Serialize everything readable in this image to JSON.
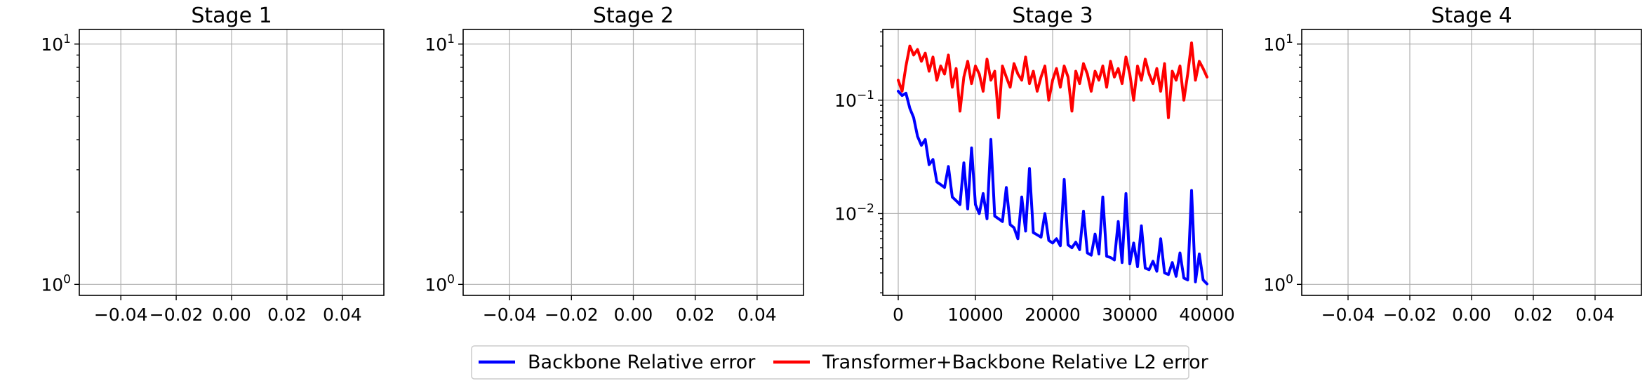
{
  "chart_data": [
    {
      "type": "line",
      "title": "Stage 1",
      "xlabel": "",
      "ylabel": "",
      "yscale": "log",
      "xlim": [
        -0.055,
        0.055
      ],
      "ylim": [
        0.9,
        11.5
      ],
      "xticks": [
        -0.04,
        -0.02,
        0.0,
        0.02,
        0.04
      ],
      "xticklabels": [
        "−0.04",
        "−0.02",
        "0.00",
        "0.02",
        "0.04"
      ],
      "yticks": [
        1,
        10
      ],
      "yticklabels": [
        {
          "base": "10",
          "exp": "0"
        },
        {
          "base": "10",
          "exp": "1"
        }
      ],
      "grid": true,
      "series": []
    },
    {
      "type": "line",
      "title": "Stage 2",
      "xlabel": "",
      "ylabel": "",
      "yscale": "log",
      "xlim": [
        -0.055,
        0.055
      ],
      "ylim": [
        0.9,
        11.5
      ],
      "xticks": [
        -0.04,
        -0.02,
        0.0,
        0.02,
        0.04
      ],
      "xticklabels": [
        "−0.04",
        "−0.02",
        "0.00",
        "0.02",
        "0.04"
      ],
      "yticks": [
        1,
        10
      ],
      "yticklabels": [
        {
          "base": "10",
          "exp": "0"
        },
        {
          "base": "10",
          "exp": "1"
        }
      ],
      "grid": true,
      "series": []
    },
    {
      "type": "line",
      "title": "Stage 3",
      "xlabel": "",
      "ylabel": "",
      "yscale": "log",
      "xlim": [
        -2000,
        42000
      ],
      "ylim": [
        0.0019,
        0.42
      ],
      "xticks": [
        0,
        10000,
        20000,
        30000,
        40000
      ],
      "xticklabels": [
        "0",
        "10000",
        "20000",
        "30000",
        "40000"
      ],
      "yticks": [
        0.01,
        0.1
      ],
      "yticklabels": [
        {
          "base": "10",
          "exp": "−2"
        },
        {
          "base": "10",
          "exp": "−1"
        }
      ],
      "grid": true,
      "series": [
        {
          "name": "Backbone Relative error",
          "color": "#0000ff",
          "x": [
            0,
            500,
            1000,
            1500,
            2000,
            2500,
            3000,
            3500,
            4000,
            4500,
            5000,
            5500,
            6000,
            6500,
            7000,
            7500,
            8000,
            8500,
            9000,
            9500,
            10000,
            10500,
            11000,
            11500,
            12000,
            12500,
            13000,
            13500,
            14000,
            14500,
            15000,
            15500,
            16000,
            16500,
            17000,
            17500,
            18000,
            18500,
            19000,
            19500,
            20000,
            20500,
            21000,
            21500,
            22000,
            22500,
            23000,
            23500,
            24000,
            24500,
            25000,
            25500,
            26000,
            26500,
            27000,
            27500,
            28000,
            28500,
            29000,
            29500,
            30000,
            30500,
            31000,
            31500,
            32000,
            32500,
            33000,
            33500,
            34000,
            34500,
            35000,
            35500,
            36000,
            36500,
            37000,
            37500,
            38000,
            38500,
            39000,
            39500,
            40000
          ],
          "values": [
            0.12,
            0.11,
            0.115,
            0.085,
            0.07,
            0.048,
            0.04,
            0.045,
            0.027,
            0.03,
            0.019,
            0.018,
            0.017,
            0.026,
            0.014,
            0.013,
            0.012,
            0.028,
            0.011,
            0.038,
            0.012,
            0.01,
            0.015,
            0.009,
            0.045,
            0.0095,
            0.009,
            0.0085,
            0.017,
            0.008,
            0.0075,
            0.006,
            0.014,
            0.007,
            0.025,
            0.0068,
            0.0065,
            0.0062,
            0.01,
            0.0058,
            0.0055,
            0.006,
            0.0052,
            0.02,
            0.0053,
            0.005,
            0.0056,
            0.0048,
            0.0105,
            0.0045,
            0.0043,
            0.0066,
            0.0044,
            0.014,
            0.0042,
            0.0041,
            0.0039,
            0.0085,
            0.0037,
            0.015,
            0.0036,
            0.0055,
            0.0034,
            0.0078,
            0.0033,
            0.0032,
            0.0038,
            0.0031,
            0.006,
            0.003,
            0.0029,
            0.0037,
            0.0028,
            0.0045,
            0.0027,
            0.0026,
            0.016,
            0.0025,
            0.0044,
            0.0026,
            0.0024
          ]
        },
        {
          "name": "Transformer+Backbone Relative L2 error",
          "color": "#ff0000",
          "x": [
            0,
            500,
            1000,
            1500,
            2000,
            2500,
            3000,
            3500,
            4000,
            4500,
            5000,
            5500,
            6000,
            6500,
            7000,
            7500,
            8000,
            8500,
            9000,
            9500,
            10000,
            10500,
            11000,
            11500,
            12000,
            12500,
            13000,
            13500,
            14000,
            14500,
            15000,
            15500,
            16000,
            16500,
            17000,
            17500,
            18000,
            18500,
            19000,
            19500,
            20000,
            20500,
            21000,
            21500,
            22000,
            22500,
            23000,
            23500,
            24000,
            24500,
            25000,
            25500,
            26000,
            26500,
            27000,
            27500,
            28000,
            28500,
            29000,
            29500,
            30000,
            30500,
            31000,
            31500,
            32000,
            32500,
            33000,
            33500,
            34000,
            34500,
            35000,
            35500,
            36000,
            36500,
            37000,
            37500,
            38000,
            38500,
            39000,
            39500,
            40000
          ],
          "values": [
            0.15,
            0.12,
            0.2,
            0.3,
            0.25,
            0.28,
            0.22,
            0.26,
            0.18,
            0.24,
            0.15,
            0.2,
            0.17,
            0.25,
            0.13,
            0.19,
            0.08,
            0.16,
            0.22,
            0.14,
            0.2,
            0.17,
            0.12,
            0.23,
            0.15,
            0.18,
            0.07,
            0.2,
            0.16,
            0.13,
            0.21,
            0.17,
            0.15,
            0.24,
            0.14,
            0.18,
            0.12,
            0.16,
            0.2,
            0.1,
            0.15,
            0.19,
            0.13,
            0.2,
            0.16,
            0.08,
            0.18,
            0.14,
            0.21,
            0.17,
            0.12,
            0.18,
            0.15,
            0.2,
            0.13,
            0.22,
            0.16,
            0.19,
            0.14,
            0.24,
            0.17,
            0.1,
            0.2,
            0.15,
            0.23,
            0.17,
            0.14,
            0.19,
            0.12,
            0.21,
            0.07,
            0.18,
            0.15,
            0.2,
            0.1,
            0.17,
            0.32,
            0.15,
            0.22,
            0.19,
            0.16
          ]
        }
      ]
    },
    {
      "type": "line",
      "title": "Stage 4",
      "xlabel": "",
      "ylabel": "",
      "yscale": "log",
      "xlim": [
        -0.055,
        0.055
      ],
      "ylim": [
        0.9,
        11.5
      ],
      "xticks": [
        -0.04,
        -0.02,
        0.0,
        0.02,
        0.04
      ],
      "xticklabels": [
        "−0.04",
        "−0.02",
        "0.00",
        "0.02",
        "0.04"
      ],
      "yticks": [
        1,
        10
      ],
      "yticklabels": [
        {
          "base": "10",
          "exp": "0"
        },
        {
          "base": "10",
          "exp": "1"
        }
      ],
      "grid": true,
      "series": []
    }
  ],
  "legend": {
    "placement": "bottom-center",
    "items": [
      {
        "label": "Backbone Relative error",
        "color": "#0000ff"
      },
      {
        "label": "Transformer+Backbone Relative L2 error",
        "color": "#ff0000"
      }
    ]
  }
}
